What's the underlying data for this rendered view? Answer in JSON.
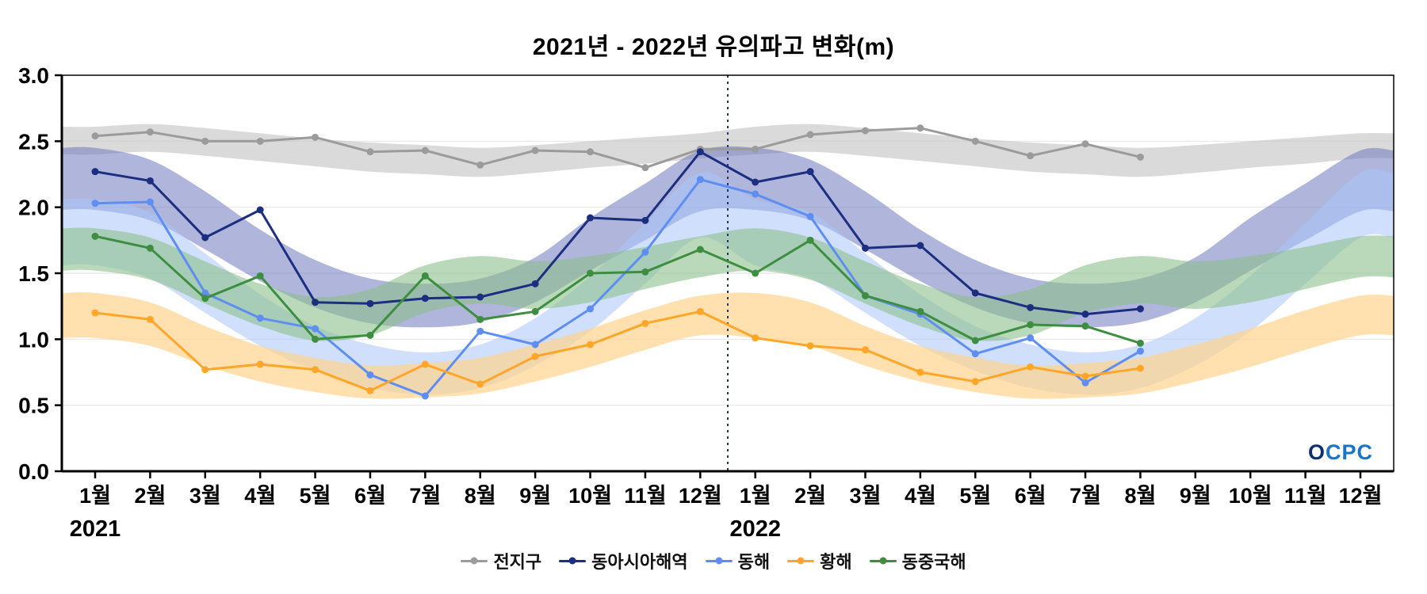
{
  "page": {
    "title": "2021년 - 2022년 유의파고 변화(m)"
  },
  "watermark": {
    "text": "OCPC"
  },
  "chart_data": {
    "type": "line",
    "title": "2021년 - 2022년 유의파고 변화(m)",
    "xlabel": "",
    "ylabel": "",
    "ylim": [
      0.0,
      3.0
    ],
    "yticks": [
      0.0,
      0.5,
      1.0,
      1.5,
      2.0,
      2.5,
      3.0
    ],
    "grid": true,
    "legend_position": "bottom",
    "x_tick_labels": [
      "1월",
      "2월",
      "3월",
      "4월",
      "5월",
      "6월",
      "7월",
      "8월",
      "9월",
      "10월",
      "11월",
      "12월",
      "1월",
      "2월",
      "3월",
      "4월",
      "5월",
      "6월",
      "7월",
      "8월",
      "9월",
      "10월",
      "11월",
      "12월"
    ],
    "year_labels": [
      {
        "label": "2021",
        "index": 0
      },
      {
        "label": "2022",
        "index": 12
      }
    ],
    "divider_index": 11.5,
    "series": [
      {
        "name": "전지구",
        "color": "#9b9b9b",
        "band_color": "#c2c2c2",
        "band_opacity": 0.6,
        "values": [
          2.54,
          2.57,
          2.5,
          2.5,
          2.53,
          2.42,
          2.43,
          2.32,
          2.43,
          2.42,
          2.3,
          2.44,
          2.44,
          2.55,
          2.58,
          2.6,
          2.5,
          2.39,
          2.48,
          2.38
        ],
        "band_upper": [
          2.61,
          2.63,
          2.6,
          2.56,
          2.52,
          2.49,
          2.47,
          2.45,
          2.47,
          2.5,
          2.53,
          2.56,
          2.61,
          2.63,
          2.6,
          2.56,
          2.52,
          2.49,
          2.47,
          2.45,
          2.47,
          2.5,
          2.53,
          2.56
        ],
        "band_lower": [
          2.4,
          2.42,
          2.39,
          2.35,
          2.31,
          2.27,
          2.25,
          2.23,
          2.26,
          2.3,
          2.33,
          2.37,
          2.4,
          2.42,
          2.39,
          2.35,
          2.31,
          2.27,
          2.25,
          2.23,
          2.26,
          2.3,
          2.33,
          2.37
        ]
      },
      {
        "name": "동아시아해역",
        "color": "#1c2e7f",
        "band_color": "#7079bd",
        "band_opacity": 0.55,
        "values": [
          2.27,
          2.2,
          1.77,
          1.98,
          1.28,
          1.27,
          1.31,
          1.32,
          1.42,
          1.92,
          1.9,
          2.42,
          2.19,
          2.27,
          1.69,
          1.71,
          1.35,
          1.24,
          1.19,
          1.23
        ],
        "band_upper": [
          2.45,
          2.36,
          2.12,
          1.83,
          1.6,
          1.46,
          1.42,
          1.46,
          1.62,
          1.92,
          2.18,
          2.43,
          2.45,
          2.36,
          2.12,
          1.83,
          1.6,
          1.46,
          1.42,
          1.46,
          1.62,
          1.92,
          2.18,
          2.43
        ],
        "band_lower": [
          1.98,
          1.9,
          1.68,
          1.44,
          1.24,
          1.12,
          1.09,
          1.13,
          1.28,
          1.52,
          1.75,
          1.97,
          1.98,
          1.9,
          1.68,
          1.44,
          1.24,
          1.12,
          1.09,
          1.13,
          1.28,
          1.52,
          1.75,
          1.97
        ]
      },
      {
        "name": "동해",
        "color": "#5e8ef2",
        "band_color": "#a9c4f7",
        "band_opacity": 0.55,
        "values": [
          2.03,
          2.04,
          1.35,
          1.16,
          1.08,
          0.73,
          0.57,
          1.06,
          0.96,
          1.23,
          1.66,
          2.21,
          2.1,
          1.93,
          1.33,
          1.19,
          0.89,
          1.01,
          0.67,
          0.91
        ],
        "band_upper": [
          2.06,
          1.96,
          1.65,
          1.34,
          1.1,
          0.96,
          0.9,
          0.96,
          1.16,
          1.48,
          1.88,
          2.26,
          2.06,
          1.96,
          1.65,
          1.34,
          1.1,
          0.96,
          0.9,
          0.96,
          1.16,
          1.48,
          1.88,
          2.26
        ],
        "band_lower": [
          1.56,
          1.46,
          1.2,
          0.95,
          0.76,
          0.63,
          0.58,
          0.63,
          0.8,
          1.06,
          1.42,
          1.77,
          1.56,
          1.46,
          1.2,
          0.95,
          0.76,
          0.63,
          0.58,
          0.63,
          0.8,
          1.06,
          1.42,
          1.77
        ]
      },
      {
        "name": "황해",
        "color": "#ffa629",
        "band_color": "#ffd38c",
        "band_opacity": 0.7,
        "values": [
          1.2,
          1.15,
          0.77,
          0.81,
          0.77,
          0.61,
          0.81,
          0.66,
          0.87,
          0.96,
          1.12,
          1.21,
          1.01,
          0.95,
          0.92,
          0.75,
          0.68,
          0.79,
          0.72,
          0.78
        ],
        "band_upper": [
          1.35,
          1.28,
          1.1,
          0.95,
          0.86,
          0.8,
          0.82,
          0.86,
          0.96,
          1.08,
          1.22,
          1.33,
          1.35,
          1.28,
          1.1,
          0.95,
          0.86,
          0.8,
          0.82,
          0.86,
          0.96,
          1.08,
          1.22,
          1.33
        ],
        "band_lower": [
          1.01,
          0.95,
          0.8,
          0.68,
          0.6,
          0.55,
          0.56,
          0.59,
          0.68,
          0.79,
          0.92,
          1.03,
          1.01,
          0.95,
          0.8,
          0.68,
          0.6,
          0.55,
          0.56,
          0.59,
          0.68,
          0.79,
          0.92,
          1.03
        ]
      },
      {
        "name": "동중국해",
        "color": "#3e8e41",
        "band_color": "#8cc08c",
        "band_opacity": 0.6,
        "values": [
          1.78,
          1.69,
          1.31,
          1.48,
          1.0,
          1.03,
          1.48,
          1.15,
          1.21,
          1.5,
          1.51,
          1.68,
          1.5,
          1.75,
          1.33,
          1.21,
          0.99,
          1.11,
          1.1,
          0.97
        ],
        "band_upper": [
          1.84,
          1.77,
          1.59,
          1.42,
          1.32,
          1.38,
          1.56,
          1.63,
          1.59,
          1.63,
          1.7,
          1.78,
          1.84,
          1.77,
          1.59,
          1.42,
          1.32,
          1.38,
          1.56,
          1.63,
          1.59,
          1.63,
          1.7,
          1.78
        ],
        "band_lower": [
          1.52,
          1.45,
          1.27,
          1.1,
          0.99,
          1.03,
          1.2,
          1.27,
          1.23,
          1.28,
          1.38,
          1.47,
          1.52,
          1.45,
          1.27,
          1.1,
          0.99,
          1.03,
          1.2,
          1.27,
          1.23,
          1.28,
          1.38,
          1.47
        ]
      }
    ]
  }
}
